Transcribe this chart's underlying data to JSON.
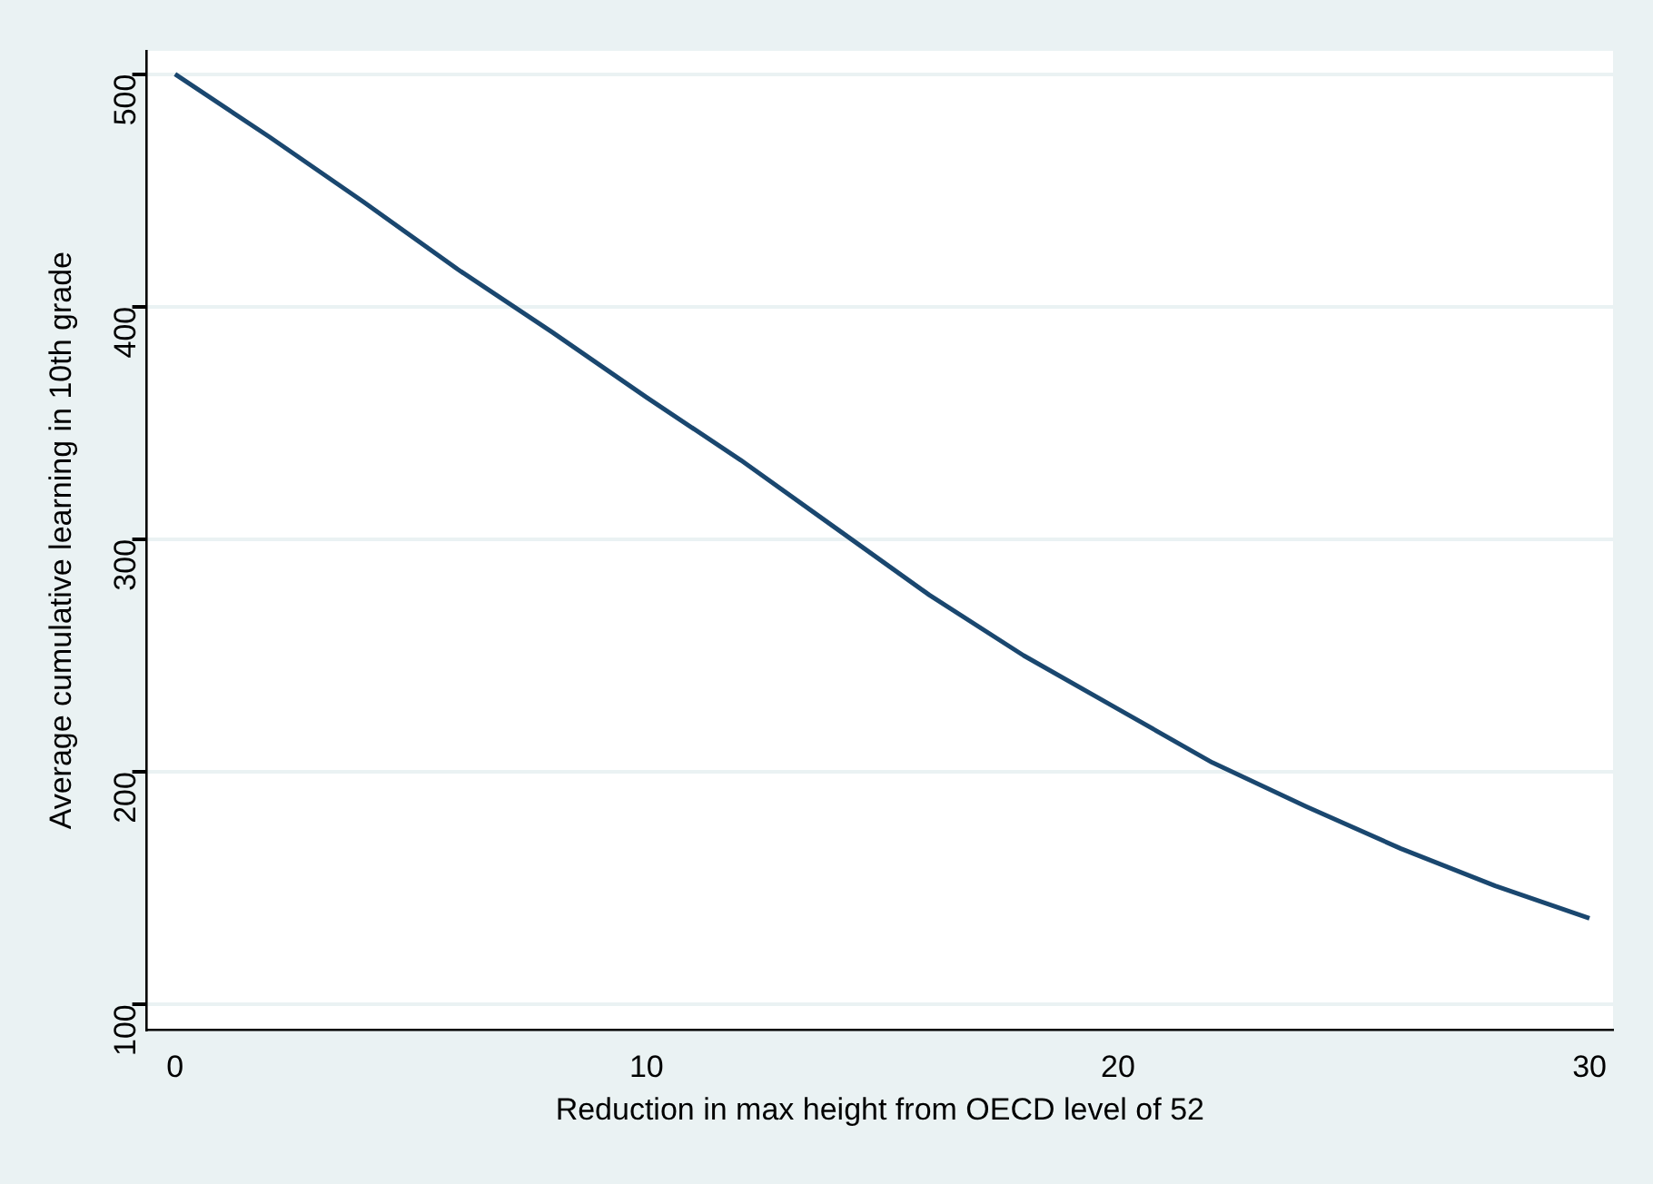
{
  "chart_data": {
    "type": "line",
    "xlabel": "Reduction in max height from OECD level of 52",
    "ylabel": "Average cumulative learning in 10th grade",
    "x": [
      0,
      2,
      4,
      6,
      8,
      10,
      12,
      14,
      16,
      18,
      20,
      22,
      24,
      26,
      28,
      30
    ],
    "series": [
      {
        "color": "#1a476f",
        "values": [
          500,
          473,
          445,
          416,
          389,
          361,
          334,
          305,
          276,
          250,
          227,
          204,
          185,
          167,
          151,
          137
        ]
      }
    ],
    "xlim": [
      -0.6,
      30.5
    ],
    "xticks": [
      0,
      10,
      20,
      30
    ],
    "ylim": [
      89,
      510
    ],
    "yticks": [
      100,
      200,
      300,
      400,
      500
    ],
    "grid": "y",
    "legend": false,
    "marker": "none",
    "line_style": "solid"
  }
}
